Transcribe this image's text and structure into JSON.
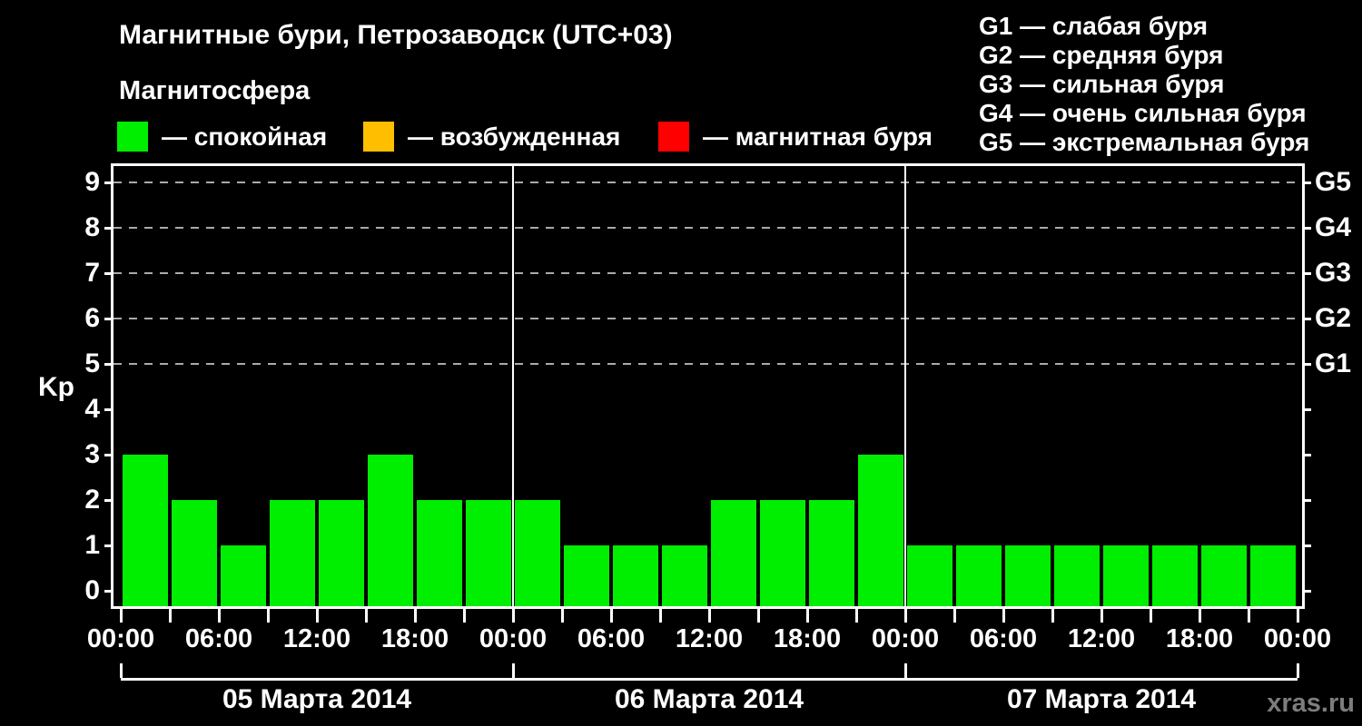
{
  "header": {
    "title": "Магнитные бури, Петрозаводск (UTC+03)",
    "subtitle": "Магнитосфера"
  },
  "legend": {
    "items": [
      {
        "name": "quiet",
        "label": "— спокойная",
        "color": "#00ee00"
      },
      {
        "name": "active",
        "label": "— возбужденная",
        "color": "#ffbe00"
      },
      {
        "name": "storm",
        "label": "— магнитная буря",
        "color": "#ff0000"
      }
    ]
  },
  "storm_scale": {
    "items": [
      "G1 — слабая буря",
      "G2 — средняя буря",
      "G3 — сильная буря",
      "G4 — очень сильная буря",
      "G5 — экстремальная буря"
    ]
  },
  "watermark": "xras.ru",
  "chart_data": {
    "type": "bar",
    "title": "Магнитные бури, Петрозаводск (UTC+03)",
    "ylabel": "Kp",
    "ylim": [
      0,
      9
    ],
    "yticks": [
      0,
      1,
      2,
      3,
      4,
      5,
      6,
      7,
      8,
      9
    ],
    "grid_levels": [
      5,
      6,
      7,
      8,
      9
    ],
    "grid": "dashed",
    "right_axis": [
      {
        "label": "G1",
        "kp": 5
      },
      {
        "label": "G2",
        "kp": 6
      },
      {
        "label": "G3",
        "kp": 7
      },
      {
        "label": "G4",
        "kp": 8
      },
      {
        "label": "G5",
        "kp": 9
      }
    ],
    "bar_interval_hours": 3,
    "days": [
      {
        "date": "05 Марта 2014",
        "times": [
          "00:00",
          "03:00",
          "06:00",
          "09:00",
          "12:00",
          "15:00",
          "18:00",
          "21:00"
        ],
        "values": [
          3,
          2,
          1,
          2,
          2,
          3,
          2,
          2
        ]
      },
      {
        "date": "06 Марта 2014",
        "times": [
          "00:00",
          "03:00",
          "06:00",
          "09:00",
          "12:00",
          "15:00",
          "18:00",
          "21:00"
        ],
        "values": [
          2,
          1,
          1,
          1,
          2,
          2,
          2,
          3
        ]
      },
      {
        "date": "07 Марта 2014",
        "times": [
          "00:00",
          "03:00",
          "06:00",
          "09:00",
          "12:00",
          "15:00",
          "18:00",
          "21:00"
        ],
        "values": [
          1,
          1,
          1,
          1,
          1,
          1,
          1,
          1
        ]
      }
    ],
    "x_tick_labels": [
      "00:00",
      "06:00",
      "12:00",
      "18:00",
      "00:00",
      "06:00",
      "12:00",
      "18:00",
      "00:00",
      "06:00",
      "12:00",
      "18:00",
      "00:00"
    ],
    "color_rules": {
      "quiet_max": 3,
      "active_kp": 4,
      "storm_min": 5
    },
    "colors": {
      "quiet": "#00ee00",
      "active": "#ffbe00",
      "storm": "#ff0000"
    }
  }
}
